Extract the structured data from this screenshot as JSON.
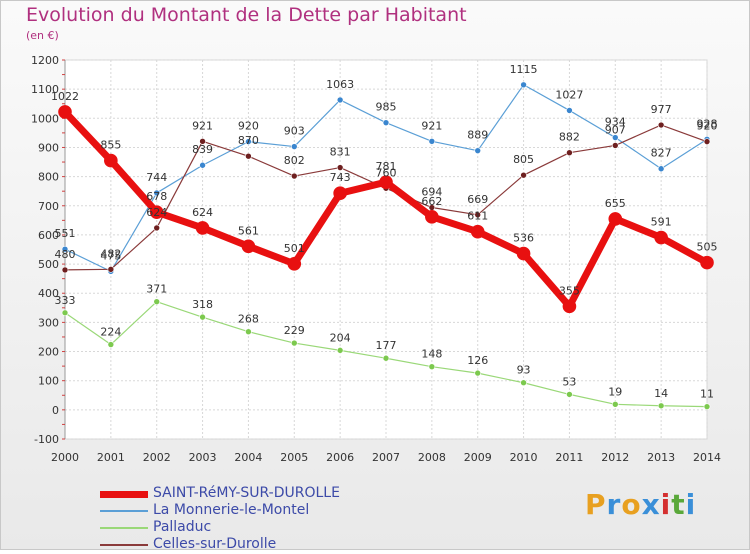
{
  "header": {
    "title": "Evolution du Montant de la Dette par Habitant",
    "subtitle": "(en €)"
  },
  "logo": {
    "text": "Proxiti",
    "colors": [
      "#e8a020",
      "#3a8fd8",
      "#e8a020",
      "#3a8fd8",
      "#d43030",
      "#5aa83a",
      "#3a8fd8"
    ]
  },
  "chart_data": {
    "type": "line",
    "title": "Evolution du Montant de la Dette par Habitant",
    "ylabel": "(en €)",
    "xlabel": "",
    "ylim": [
      -100,
      1200
    ],
    "yticks": [
      -100,
      0,
      100,
      200,
      300,
      400,
      500,
      600,
      700,
      800,
      900,
      1000,
      1100,
      1200
    ],
    "x": [
      2000,
      2001,
      2002,
      2003,
      2004,
      2005,
      2006,
      2007,
      2008,
      2009,
      2010,
      2011,
      2012,
      2013,
      2014
    ],
    "grid": true,
    "legend_position": "bottom-left",
    "series": [
      {
        "name": "SAINT-RéMY-SUR-DUROLLE",
        "color": "#e81010",
        "marker_color": "#e81010",
        "width": 7,
        "values": [
          1022,
          855,
          678,
          624,
          561,
          501,
          743,
          781,
          662,
          611,
          536,
          355,
          655,
          591,
          505
        ]
      },
      {
        "name": "La Monnerie-le-Montel",
        "color": "#5b9fd6",
        "marker_color": "#3a86cf",
        "width": 1.2,
        "values": [
          551,
          475,
          744,
          839,
          920,
          903,
          1063,
          985,
          921,
          889,
          1115,
          1027,
          934,
          827,
          928
        ]
      },
      {
        "name": "Palladuc",
        "color": "#9ad878",
        "marker_color": "#7cc94e",
        "width": 1.2,
        "values": [
          333,
          224,
          371,
          318,
          268,
          229,
          204,
          177,
          148,
          126,
          93,
          53,
          19,
          14,
          11
        ]
      },
      {
        "name": "Celles-sur-Durolle",
        "color": "#8a3a3a",
        "marker_color": "#6e1f1f",
        "width": 1.2,
        "values": [
          480,
          482,
          624,
          921,
          870,
          802,
          831,
          760,
          694,
          669,
          805,
          882,
          907,
          977,
          920
        ]
      }
    ],
    "point_labels": {
      "SAINT-RéMY-SUR-DUROLLE": [
        "1022",
        "855",
        "678",
        "624",
        "561",
        "501",
        "743",
        "781",
        "662",
        "611",
        "536",
        "355",
        "655",
        "591",
        "505"
      ],
      "La Monnerie-le-Montel": [
        "551",
        "475",
        "744",
        "839",
        "920",
        "903",
        "1063",
        "985",
        "921",
        "889",
        "1115",
        "1027",
        "934",
        "827",
        "928"
      ],
      "Palladuc": [
        "333",
        "224",
        "371",
        "318",
        "268",
        "229",
        "204",
        "177",
        "148",
        "126",
        "93",
        "53",
        "19",
        "14",
        "11"
      ],
      "Celles-sur-Durolle": [
        "480",
        "482",
        "624",
        "921",
        "870",
        "802",
        "831",
        "760",
        "694",
        "669",
        "805",
        "882",
        "907",
        "977",
        "920"
      ]
    }
  }
}
